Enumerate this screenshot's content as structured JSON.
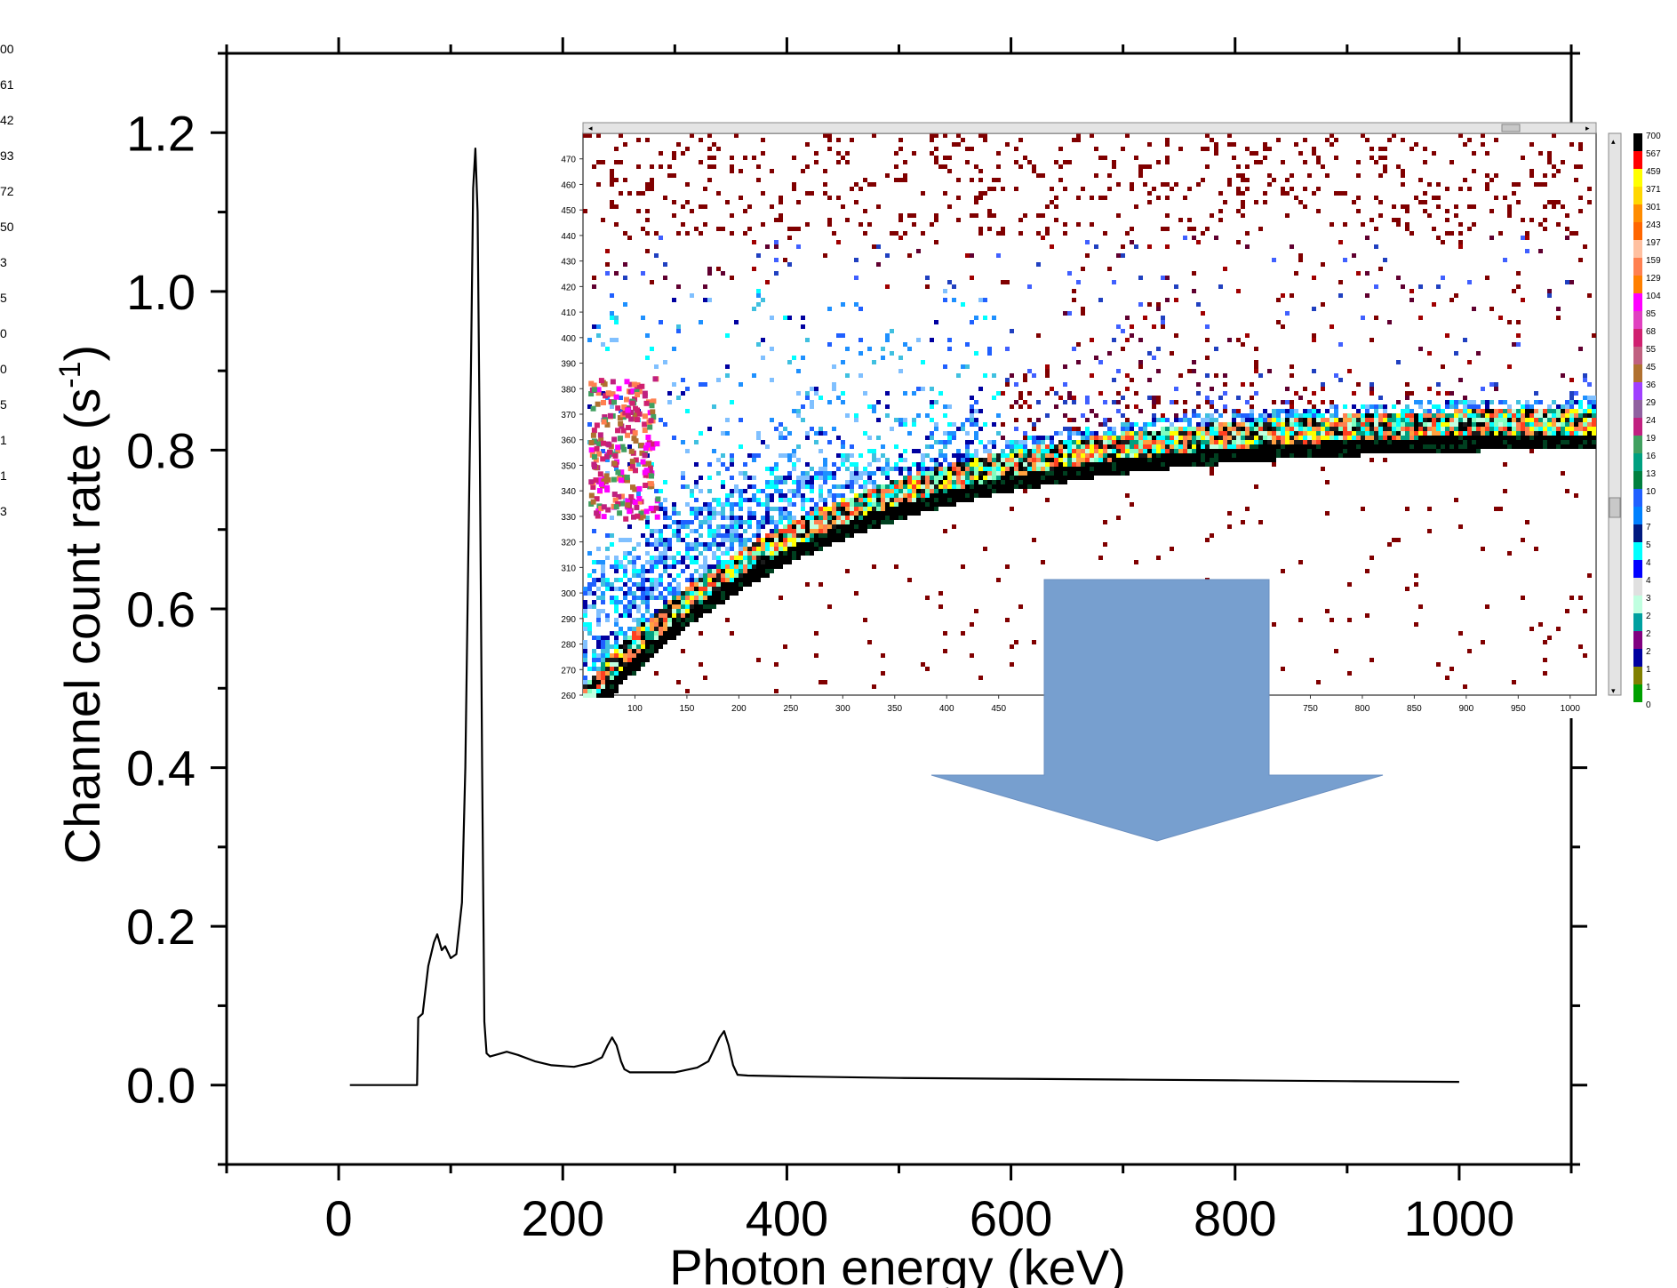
{
  "chart_data": [
    {
      "type": "line",
      "title": "",
      "xlabel": "Photon energy  (keV)",
      "ylabel_main": "Channel count rate  (s",
      "ylabel_sup": "-1",
      "ylabel_close": ")",
      "xlim": [
        -100,
        1100
      ],
      "ylim": [
        -0.1,
        1.3
      ],
      "x_ticks": [
        0,
        200,
        400,
        600,
        800,
        1000
      ],
      "x_tick_labels": [
        "0",
        "200",
        "400",
        "600",
        "800",
        "1000"
      ],
      "y_ticks": [
        0.0,
        0.2,
        0.4,
        0.6,
        0.8,
        1.0,
        1.2
      ],
      "y_tick_labels": [
        "0.0",
        "0.2",
        "0.4",
        "0.6",
        "0.8",
        "1.0",
        "1.2"
      ],
      "grid": false,
      "series": [
        {
          "x": [
            10,
            70,
            71,
            75,
            80,
            85,
            88,
            92,
            95,
            100,
            105,
            110,
            113,
            115,
            118,
            120,
            122,
            124,
            126,
            128,
            130,
            132,
            135,
            140,
            150,
            160,
            175,
            190,
            210,
            225,
            235,
            240,
            244,
            248,
            252,
            255,
            260,
            275,
            300,
            320,
            330,
            335,
            340,
            344,
            348,
            352,
            356,
            365,
            400,
            450,
            500,
            600,
            700,
            800,
            900,
            1000
          ],
          "y": [
            0.0,
            0.0,
            0.085,
            0.09,
            0.15,
            0.18,
            0.19,
            0.17,
            0.175,
            0.16,
            0.165,
            0.23,
            0.4,
            0.6,
            0.9,
            1.13,
            1.18,
            1.1,
            0.8,
            0.4,
            0.08,
            0.04,
            0.036,
            0.038,
            0.042,
            0.038,
            0.03,
            0.025,
            0.023,
            0.028,
            0.035,
            0.05,
            0.06,
            0.05,
            0.03,
            0.02,
            0.016,
            0.016,
            0.016,
            0.022,
            0.03,
            0.045,
            0.06,
            0.068,
            0.05,
            0.025,
            0.013,
            0.012,
            0.011,
            0.01,
            0.009,
            0.008,
            0.007,
            0.006,
            0.005,
            0.004
          ]
        }
      ]
    },
    {
      "type": "heatmap",
      "x_tick_labels": [
        "100",
        "150",
        "200",
        "250",
        "300",
        "350",
        "400",
        "450",
        "750",
        "800",
        "850",
        "900",
        "950",
        "1000"
      ],
      "y_tick_labels": [
        "470",
        "460",
        "450",
        "440",
        "430",
        "420",
        "410",
        "400",
        "390",
        "380",
        "370",
        "360",
        "350",
        "340",
        "330",
        "320",
        "310",
        "300",
        "290",
        "280",
        "270",
        "260"
      ],
      "colorbar_labels": [
        "700",
        "567",
        "459",
        "371",
        "301",
        "243",
        "197",
        "159",
        "129",
        "104",
        "85",
        "68",
        "55",
        "45",
        "36",
        "29",
        "24",
        "19",
        "16",
        "13",
        "10",
        "8",
        "7",
        "5",
        "4",
        "4",
        "3",
        "2",
        "2",
        "2",
        "1",
        "1",
        "0"
      ],
      "colorbar_colors": [
        "#000000",
        "#ff0000",
        "#ffff00",
        "#ffd700",
        "#ff8c00",
        "#ff6600",
        "#ffc0a0",
        "#ff8050",
        "#ff7f00",
        "#ff00ff",
        "#e040c0",
        "#d02070",
        "#c06080",
        "#b07030",
        "#a040ff",
        "#9060a0",
        "#c02080",
        "#40a060",
        "#00a080",
        "#008040",
        "#2060ff",
        "#0080ff",
        "#001a80",
        "#00ffff",
        "#0000ff",
        "#e0e0e0",
        "#c0ffe0",
        "#00a0a0",
        "#800080",
        "#0000a0",
        "#808000",
        "#00a000",
        "#800000"
      ]
    },
    {
      "type": "table",
      "left_partial_labels": [
        "00",
        "61",
        "42",
        "93",
        "72",
        "50",
        "3",
        "5",
        "0",
        "0",
        "5",
        "1",
        "1",
        "3"
      ]
    }
  ]
}
